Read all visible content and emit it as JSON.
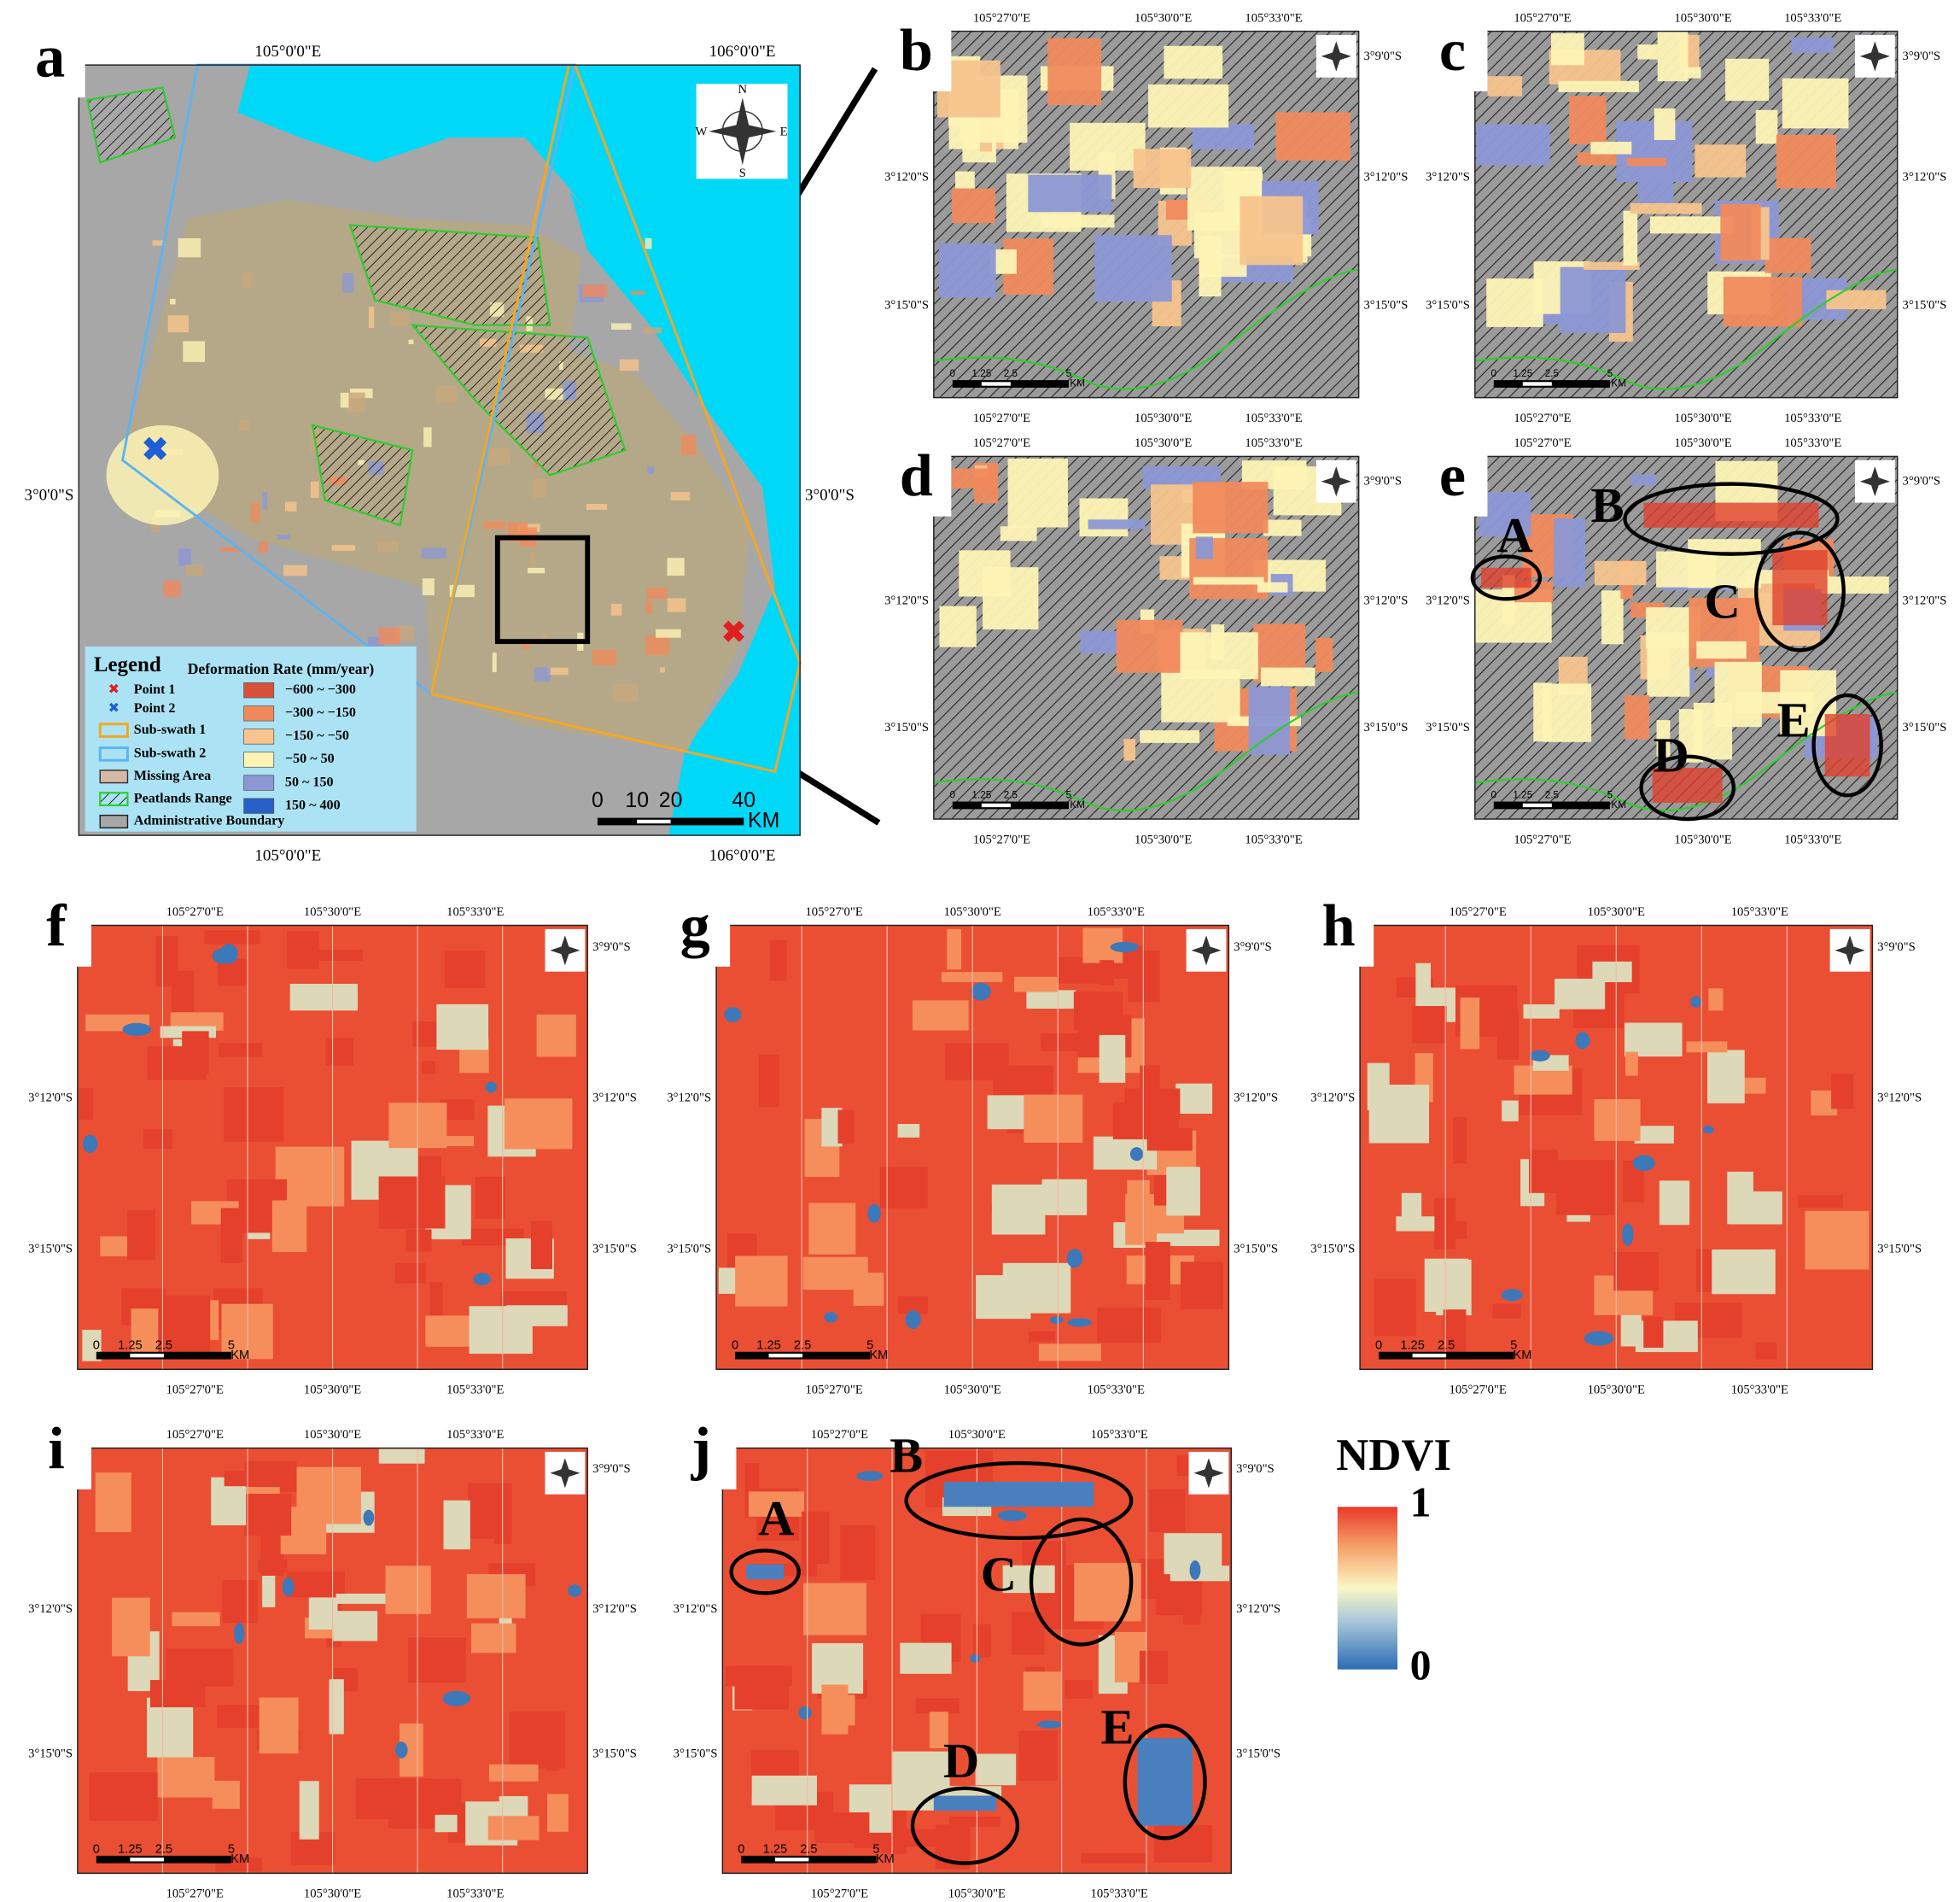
{
  "panels": [
    {
      "letter": "a",
      "top_labels": [
        "105°0'0\"E",
        "106°0'0\"E"
      ],
      "bottom_labels": [
        "105°0'0\"E",
        "106°0'0\"E"
      ],
      "left_labels": [
        "3°0'0\"S"
      ],
      "right_labels": [
        "3°0'0\"S"
      ],
      "scale_labels": [
        "0",
        "10",
        "20",
        "40",
        "KM"
      ],
      "compass": [
        "N",
        "S",
        "W",
        "E"
      ],
      "legend": {
        "title": "Legend",
        "items": [
          "Point 1",
          "Point 2",
          "Sub-swath 1",
          "Sub-swath 2",
          "Missing Area",
          "Peatlands Range",
          "Administrative Boundary"
        ],
        "classes_title": "Deformation Rate (mm/year)",
        "classes": [
          {
            "label": "−600 ~ −300",
            "color": "#d9513a"
          },
          {
            "label": "−300 ~ −150",
            "color": "#f08a5d"
          },
          {
            "label": "−150 ~ −50",
            "color": "#f7c48d"
          },
          {
            "label": "−50 ~ 50",
            "color": "#fdf3b5"
          },
          {
            "label": "50 ~ 150",
            "color": "#8c97d4"
          },
          {
            "label": "150 ~ 400",
            "color": "#2760c9"
          }
        ]
      }
    },
    {
      "letter": "b",
      "top_labels": [
        "105°27'0\"E",
        "105°30'0\"E",
        "105°33'0\"E"
      ],
      "bottom_labels": [
        "105°27'0\"E",
        "105°30'0\"E",
        "105°33'0\"E"
      ],
      "left_labels": [
        "3°12'0\"S",
        "3°15'0\"S"
      ],
      "right_labels": [
        "3°9'0\"S",
        "3°12'0\"S",
        "3°15'0\"S"
      ],
      "scale_labels": [
        "0",
        "1.25",
        "2.5",
        "5",
        "KM"
      ]
    },
    {
      "letter": "c",
      "top_labels": [
        "105°27'0\"E",
        "105°30'0\"E",
        "105°33'0\"E"
      ],
      "bottom_labels": [
        "105°27'0\"E",
        "105°30'0\"E",
        "105°33'0\"E"
      ],
      "left_labels": [
        "3°12'0\"S",
        "3°15'0\"S"
      ],
      "right_labels": [
        "3°9'0\"S",
        "3°12'0\"S",
        "3°15'0\"S"
      ],
      "scale_labels": [
        "0",
        "1.25",
        "2.5",
        "5",
        "KM"
      ]
    },
    {
      "letter": "d",
      "top_labels": [
        "105°27'0\"E",
        "105°30'0\"E",
        "105°33'0\"E"
      ],
      "bottom_labels": [
        "105°27'0\"E",
        "105°30'0\"E",
        "105°33'0\"E"
      ],
      "left_labels": [
        "3°12'0\"S",
        "3°15'0\"S"
      ],
      "right_labels": [
        "3°9'0\"S",
        "3°12'0\"S",
        "3°15'0\"S"
      ],
      "scale_labels": [
        "0",
        "1.25",
        "2.5",
        "5",
        "KM"
      ]
    },
    {
      "letter": "e",
      "top_labels": [
        "105°27'0\"E",
        "105°30'0\"E",
        "105°33'0\"E"
      ],
      "bottom_labels": [
        "105°27'0\"E",
        "105°30'0\"E",
        "105°33'0\"E"
      ],
      "left_labels": [
        "3°12'0\"S",
        "3°15'0\"S"
      ],
      "right_labels": [
        "3°9'0\"S",
        "3°12'0\"S",
        "3°15'0\"S"
      ],
      "scale_labels": [
        "0",
        "1.25",
        "2.5",
        "5",
        "KM"
      ],
      "annotations": [
        "A",
        "B",
        "C",
        "D",
        "E"
      ]
    },
    {
      "letter": "f",
      "top_labels": [
        "105°27'0\"E",
        "105°30'0\"E",
        "105°33'0\"E"
      ],
      "bottom_labels": [
        "105°27'0\"E",
        "105°30'0\"E",
        "105°33'0\"E"
      ],
      "left_labels": [
        "3°12'0\"S",
        "3°15'0\"S"
      ],
      "right_labels": [
        "3°9'0\"S",
        "3°12'0\"S",
        "3°15'0\"S"
      ],
      "scale_labels": [
        "0",
        "1.25",
        "2.5",
        "5",
        "KM"
      ]
    },
    {
      "letter": "g",
      "top_labels": [
        "105°27'0\"E",
        "105°30'0\"E",
        "105°33'0\"E"
      ],
      "bottom_labels": [
        "105°27'0\"E",
        "105°30'0\"E",
        "105°33'0\"E"
      ],
      "left_labels": [
        "3°12'0\"S",
        "3°15'0\"S"
      ],
      "right_labels": [
        "3°9'0\"S",
        "3°12'0\"S",
        "3°15'0\"S"
      ],
      "scale_labels": [
        "0",
        "1.25",
        "2.5",
        "5",
        "KM"
      ]
    },
    {
      "letter": "h",
      "top_labels": [
        "105°27'0\"E",
        "105°30'0\"E",
        "105°33'0\"E"
      ],
      "bottom_labels": [
        "105°27'0\"E",
        "105°30'0\"E",
        "105°33'0\"E"
      ],
      "left_labels": [
        "3°12'0\"S",
        "3°15'0\"S"
      ],
      "right_labels": [
        "3°9'0\"S",
        "3°12'0\"S",
        "3°15'0\"S"
      ],
      "scale_labels": [
        "0",
        "1.25",
        "2.5",
        "5",
        "KM"
      ]
    },
    {
      "letter": "i",
      "top_labels": [
        "105°27'0\"E",
        "105°30'0\"E",
        "105°33'0\"E"
      ],
      "bottom_labels": [
        "105°27'0\"E",
        "105°30'0\"E",
        "105°33'0\"E"
      ],
      "left_labels": [
        "3°12'0\"S",
        "3°15'0\"S"
      ],
      "right_labels": [
        "3°9'0\"S",
        "3°12'0\"S",
        "3°15'0\"S"
      ],
      "scale_labels": [
        "0",
        "1.25",
        "2.5",
        "5",
        "KM"
      ]
    },
    {
      "letter": "j",
      "top_labels": [
        "105°27'0\"E",
        "105°30'0\"E",
        "105°33'0\"E"
      ],
      "bottom_labels": [
        "105°27'0\"E",
        "105°30'0\"E",
        "105°33'0\"E"
      ],
      "left_labels": [
        "3°12'0\"S",
        "3°15'0\"S"
      ],
      "right_labels": [
        "3°9'0\"S",
        "3°12'0\"S",
        "3°15'0\"S"
      ],
      "scale_labels": [
        "0",
        "1.25",
        "2.5",
        "5",
        "KM"
      ],
      "annotations": [
        "A",
        "B",
        "C",
        "D",
        "E"
      ]
    }
  ],
  "colorbar": {
    "title": "NDVI",
    "max_label": "1",
    "min_label": "0"
  }
}
